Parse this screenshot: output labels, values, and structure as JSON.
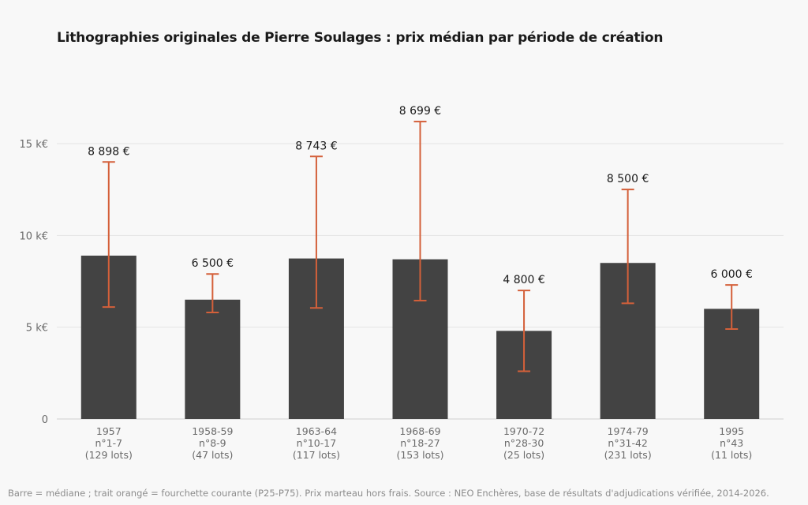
{
  "chart_data": {
    "type": "bar",
    "title": "Lithographies originales de Pierre Soulages : prix médian par période de création",
    "xlabel": "",
    "ylabel": "",
    "ylim": [
      0,
      18500
    ],
    "yticks": [
      {
        "value": 0,
        "label": "0"
      },
      {
        "value": 5000,
        "label": "5 k€"
      },
      {
        "value": 10000,
        "label": "10 k€"
      },
      {
        "value": 15000,
        "label": "15 k€"
      }
    ],
    "grid": true,
    "categories": [
      {
        "period": "1957",
        "numbers": "n°1-7",
        "lots": "(129 lots)"
      },
      {
        "period": "1958-59",
        "numbers": "n°8-9",
        "lots": "(47 lots)"
      },
      {
        "period": "1963-64",
        "numbers": "n°10-17",
        "lots": "(117 lots)"
      },
      {
        "period": "1968-69",
        "numbers": "n°18-27",
        "lots": "(153 lots)"
      },
      {
        "period": "1970-72",
        "numbers": "n°28-30",
        "lots": "(25 lots)"
      },
      {
        "period": "1974-79",
        "numbers": "n°31-42",
        "lots": "(231 lots)"
      },
      {
        "period": "1995",
        "numbers": "n°43",
        "lots": "(11 lots)"
      }
    ],
    "series": [
      {
        "values": [
          8898,
          6500,
          8743,
          8699,
          4800,
          8500,
          6000
        ],
        "value_labels": [
          "8 898 €",
          "6 500 €",
          "8 743 €",
          "8 699 €",
          "4 800 €",
          "8 500 €",
          "6 000 €"
        ],
        "p25": [
          6100,
          5800,
          6050,
          6450,
          2600,
          6300,
          4900
        ],
        "p75": [
          14000,
          7900,
          14300,
          16200,
          7000,
          12500,
          7300
        ]
      }
    ],
    "colors": {
      "bar": "#434343",
      "range": "#d4603a",
      "grid": "#e3e3e3"
    }
  },
  "footer": "Barre = médiane ; trait orangé = fourchette courante (P25-P75). Prix marteau hors frais. Source : NEO Enchères, base de résultats d'adjudications vérifiée, 2014-2026."
}
